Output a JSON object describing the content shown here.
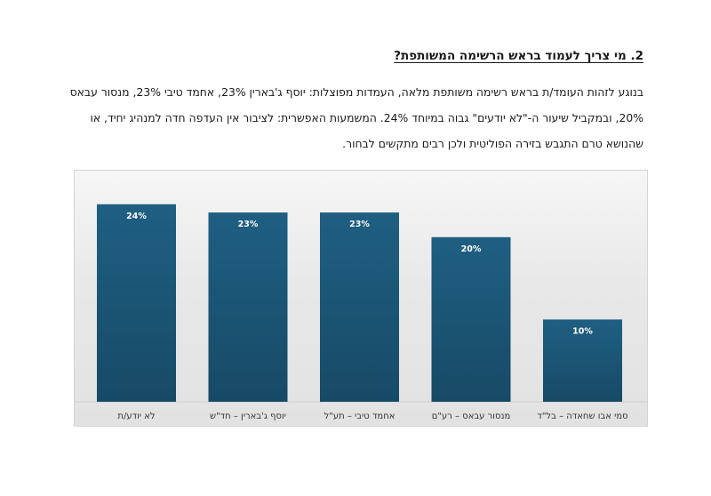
{
  "section": {
    "heading": "2. מי צריך לעמוד בראש הרשימה המשותפת?",
    "paragraph_lines": [
      "בנוגע לזהות העומד/ת בראש רשימה משותפת מלאה, העמדות מפוצלות: יוסף ג'בארין 23%, אחמד טיבי 23%, מנסור עבאס",
      "20%, ובמקביל שיעור ה-\"לא יודעים\" גבוה במיוחד 24%. המשמעות האפשרית: לציבור אין העדפה חדה למנהיג יחיד, או",
      "שהנושא טרם התגבש בזירה הפוליטית ולכן רבים מתקשים לבחור."
    ]
  },
  "chart_data": {
    "type": "bar",
    "categories": [
      "לא יודע/ת",
      "יוסף ג'בארין – חד\"ש",
      "אחמד טיבי – תע\"ל",
      "מנסור עבאס – רע\"ם",
      "סמי אבו שחאדה – בל\"ד"
    ],
    "values": [
      24,
      23,
      23,
      20,
      10
    ],
    "value_labels": [
      "24%",
      "23%",
      "23%",
      "20%",
      "10%"
    ],
    "ylim": [
      0,
      27
    ],
    "grid": false,
    "legend": "none",
    "bar_color": "#1f5f82",
    "bar_color_dark": "#164862"
  }
}
